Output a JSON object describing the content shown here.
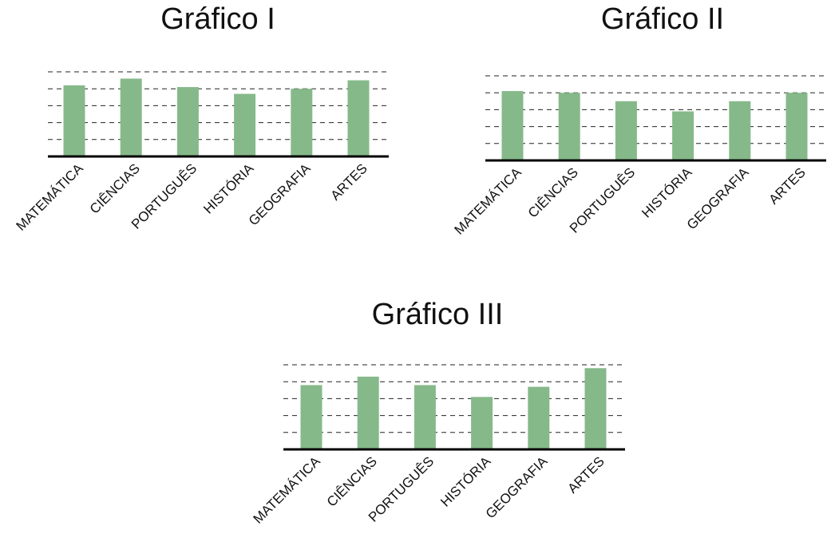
{
  "chart_data": [
    {
      "type": "bar",
      "title": "Gráfico I",
      "categories": [
        "MATEMÁTICA",
        "CIÊNCIAS",
        "PORTUGUÊS",
        "HISTÓRIA",
        "GEOGRAFIA",
        "ARTES"
      ],
      "values": [
        4.2,
        4.6,
        4.1,
        3.7,
        4.0,
        4.5
      ],
      "ylim": [
        0,
        5
      ],
      "grid": true,
      "color": "#86b98a"
    },
    {
      "type": "bar",
      "title": "Gráfico II",
      "categories": [
        "MATEMÁTICA",
        "CIÊNCIAS",
        "PORTUGUÊS",
        "HISTÓRIA",
        "GEOGRAFIA",
        "ARTES"
      ],
      "values": [
        4.1,
        4.0,
        3.5,
        2.9,
        3.5,
        4.0
      ],
      "ylim": [
        0,
        5
      ],
      "grid": true,
      "color": "#86b98a"
    },
    {
      "type": "bar",
      "title": "Gráfico III",
      "categories": [
        "MATEMÁTICA",
        "CIÊNCIAS",
        "PORTUGUÊS",
        "HISTÓRIA",
        "GEOGRAFIA",
        "ARTES"
      ],
      "values": [
        3.8,
        4.3,
        3.8,
        3.1,
        3.7,
        4.8
      ],
      "ylim": [
        0,
        5
      ],
      "grid": true,
      "color": "#86b98a"
    }
  ]
}
